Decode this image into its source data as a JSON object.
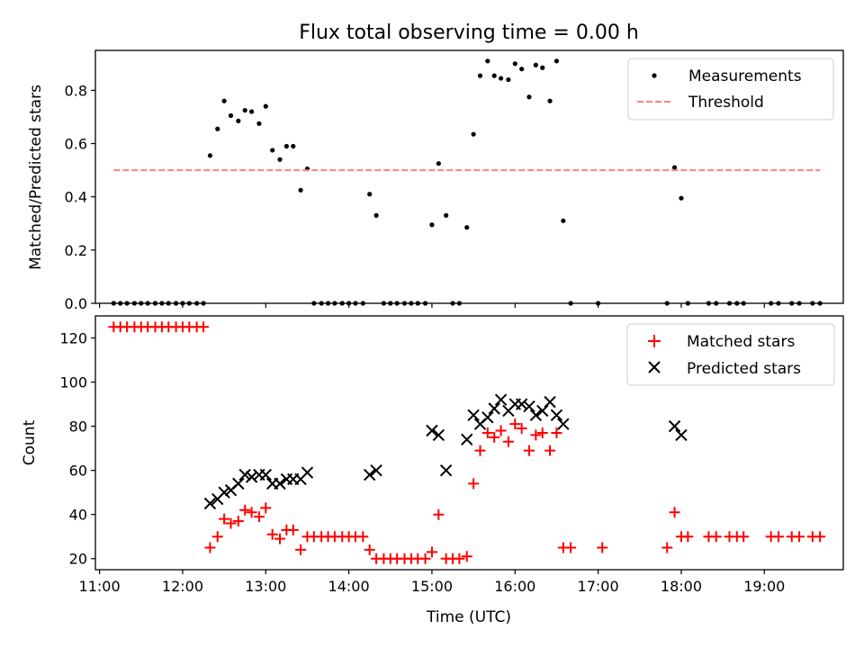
{
  "chart_data": [
    {
      "type": "scatter",
      "title": "Flux total observing time = 0.00 h",
      "xlabel": "",
      "ylabel": "Matched/Predicted stars",
      "xlim": [
        10.95,
        19.95
      ],
      "ylim": [
        0,
        0.95
      ],
      "yticks": [
        0,
        0.2,
        0.4,
        0.6,
        0.8
      ],
      "ytick_labels": [
        "0.0",
        "0.2",
        "0.4",
        "0.6",
        "0.8"
      ],
      "xticks": [
        11,
        12,
        13,
        14,
        15,
        16,
        17,
        18,
        19
      ],
      "xtick_labels": [
        "",
        "",
        "",
        "",
        "",
        "",
        "",
        "",
        ""
      ],
      "legend": {
        "position": "top-right",
        "entries": [
          "Measurements",
          "Threshold"
        ]
      },
      "series": [
        {
          "name": "Measurements",
          "marker": "dot",
          "color": "#000000",
          "points": [
            [
              11.17,
              0
            ],
            [
              11.25,
              0
            ],
            [
              11.33,
              0
            ],
            [
              11.42,
              0
            ],
            [
              11.5,
              0
            ],
            [
              11.58,
              0
            ],
            [
              11.67,
              0
            ],
            [
              11.75,
              0
            ],
            [
              11.83,
              0
            ],
            [
              11.92,
              0
            ],
            [
              12.0,
              0
            ],
            [
              12.08,
              0
            ],
            [
              12.17,
              0
            ],
            [
              12.25,
              0
            ],
            [
              12.33,
              0.555
            ],
            [
              12.42,
              0.655
            ],
            [
              12.5,
              0.76
            ],
            [
              12.58,
              0.705
            ],
            [
              12.67,
              0.685
            ],
            [
              12.75,
              0.725
            ],
            [
              12.83,
              0.72
            ],
            [
              12.92,
              0.675
            ],
            [
              13.0,
              0.74
            ],
            [
              13.08,
              0.575
            ],
            [
              13.17,
              0.54
            ],
            [
              13.25,
              0.59
            ],
            [
              13.33,
              0.59
            ],
            [
              13.42,
              0.425
            ],
            [
              13.5,
              0.505
            ],
            [
              13.58,
              0
            ],
            [
              13.67,
              0
            ],
            [
              13.75,
              0
            ],
            [
              13.83,
              0
            ],
            [
              13.92,
              0
            ],
            [
              14.0,
              0
            ],
            [
              14.08,
              0
            ],
            [
              14.17,
              0
            ],
            [
              14.25,
              0.41
            ],
            [
              14.33,
              0.33
            ],
            [
              14.42,
              0
            ],
            [
              14.5,
              0
            ],
            [
              14.58,
              0
            ],
            [
              14.67,
              0
            ],
            [
              14.75,
              0
            ],
            [
              14.83,
              0
            ],
            [
              14.92,
              0
            ],
            [
              15.0,
              0.295
            ],
            [
              15.08,
              0.525
            ],
            [
              15.17,
              0.33
            ],
            [
              15.25,
              0
            ],
            [
              15.33,
              0
            ],
            [
              15.42,
              0.285
            ],
            [
              15.5,
              0.635
            ],
            [
              15.58,
              0.855
            ],
            [
              15.67,
              0.91
            ],
            [
              15.75,
              0.855
            ],
            [
              15.83,
              0.845
            ],
            [
              15.92,
              0.84
            ],
            [
              16.0,
              0.9
            ],
            [
              16.08,
              0.88
            ],
            [
              16.17,
              0.775
            ],
            [
              16.25,
              0.895
            ],
            [
              16.33,
              0.885
            ],
            [
              16.42,
              0.76
            ],
            [
              16.5,
              0.91
            ],
            [
              16.58,
              0.31
            ],
            [
              16.67,
              0
            ],
            [
              17.0,
              0
            ],
            [
              17.83,
              0
            ],
            [
              17.92,
              0.51
            ],
            [
              18.0,
              0.395
            ],
            [
              18.08,
              0
            ],
            [
              18.33,
              0
            ],
            [
              18.42,
              0
            ],
            [
              18.58,
              0
            ],
            [
              18.67,
              0
            ],
            [
              18.75,
              0
            ],
            [
              19.08,
              0
            ],
            [
              19.17,
              0
            ],
            [
              19.33,
              0
            ],
            [
              19.42,
              0
            ],
            [
              19.58,
              0
            ],
            [
              19.67,
              0
            ]
          ]
        },
        {
          "name": "Threshold",
          "marker": "dashed-line",
          "color": "#ff7f7f",
          "points": [
            [
              11.17,
              0.5
            ],
            [
              19.67,
              0.5
            ]
          ]
        }
      ]
    },
    {
      "type": "scatter",
      "title": "",
      "xlabel": "Time (UTC)",
      "ylabel": "Count",
      "xlim": [
        10.95,
        19.95
      ],
      "ylim": [
        15,
        130
      ],
      "yticks": [
        20,
        40,
        60,
        80,
        100,
        120
      ],
      "ytick_labels": [
        "20",
        "40",
        "60",
        "80",
        "100",
        "120"
      ],
      "xticks": [
        11,
        12,
        13,
        14,
        15,
        16,
        17,
        18,
        19
      ],
      "xtick_labels": [
        "11:00",
        "12:00",
        "13:00",
        "14:00",
        "15:00",
        "16:00",
        "17:00",
        "18:00",
        "19:00"
      ],
      "legend": {
        "position": "top-right",
        "entries": [
          "Matched stars",
          "Predicted stars"
        ]
      },
      "series": [
        {
          "name": "Matched stars",
          "marker": "plus",
          "color": "#ff0000",
          "points": [
            [
              11.17,
              125
            ],
            [
              11.25,
              125
            ],
            [
              11.33,
              125
            ],
            [
              11.42,
              125
            ],
            [
              11.5,
              125
            ],
            [
              11.58,
              125
            ],
            [
              11.67,
              125
            ],
            [
              11.75,
              125
            ],
            [
              11.83,
              125
            ],
            [
              11.92,
              125
            ],
            [
              12.0,
              125
            ],
            [
              12.08,
              125
            ],
            [
              12.17,
              125
            ],
            [
              12.25,
              125
            ],
            [
              12.33,
              25
            ],
            [
              12.42,
              30
            ],
            [
              12.5,
              38
            ],
            [
              12.58,
              36
            ],
            [
              12.67,
              37
            ],
            [
              12.75,
              42
            ],
            [
              12.83,
              41
            ],
            [
              12.92,
              39
            ],
            [
              13.0,
              43
            ],
            [
              13.08,
              31
            ],
            [
              13.17,
              29
            ],
            [
              13.25,
              33
            ],
            [
              13.33,
              33
            ],
            [
              13.42,
              24
            ],
            [
              13.5,
              30
            ],
            [
              13.58,
              30
            ],
            [
              13.67,
              30
            ],
            [
              13.75,
              30
            ],
            [
              13.83,
              30
            ],
            [
              13.92,
              30
            ],
            [
              14.0,
              30
            ],
            [
              14.08,
              30
            ],
            [
              14.17,
              30
            ],
            [
              14.25,
              24
            ],
            [
              14.33,
              20
            ],
            [
              14.42,
              20
            ],
            [
              14.5,
              20
            ],
            [
              14.58,
              20
            ],
            [
              14.67,
              20
            ],
            [
              14.75,
              20
            ],
            [
              14.83,
              20
            ],
            [
              14.92,
              20
            ],
            [
              15.0,
              23
            ],
            [
              15.08,
              40
            ],
            [
              15.17,
              20
            ],
            [
              15.25,
              20
            ],
            [
              15.33,
              20
            ],
            [
              15.42,
              21
            ],
            [
              15.5,
              54
            ],
            [
              15.58,
              69
            ],
            [
              15.67,
              77
            ],
            [
              15.75,
              75
            ],
            [
              15.83,
              78
            ],
            [
              15.92,
              73
            ],
            [
              16.0,
              81
            ],
            [
              16.08,
              79
            ],
            [
              16.17,
              69
            ],
            [
              16.25,
              76
            ],
            [
              16.33,
              77
            ],
            [
              16.42,
              69
            ],
            [
              16.5,
              77
            ],
            [
              16.58,
              25
            ],
            [
              16.67,
              25
            ],
            [
              17.05,
              25
            ],
            [
              17.83,
              25
            ],
            [
              17.92,
              41
            ],
            [
              18.0,
              30
            ],
            [
              18.08,
              30
            ],
            [
              18.33,
              30
            ],
            [
              18.42,
              30
            ],
            [
              18.58,
              30
            ],
            [
              18.67,
              30
            ],
            [
              18.75,
              30
            ],
            [
              19.08,
              30
            ],
            [
              19.17,
              30
            ],
            [
              19.33,
              30
            ],
            [
              19.42,
              30
            ],
            [
              19.58,
              30
            ],
            [
              19.67,
              30
            ]
          ]
        },
        {
          "name": "Predicted stars",
          "marker": "x",
          "color": "#000000",
          "points": [
            [
              12.33,
              45
            ],
            [
              12.42,
              47
            ],
            [
              12.5,
              50
            ],
            [
              12.58,
              51
            ],
            [
              12.67,
              54
            ],
            [
              12.75,
              58
            ],
            [
              12.83,
              57
            ],
            [
              12.92,
              58
            ],
            [
              13.0,
              58
            ],
            [
              13.08,
              54
            ],
            [
              13.17,
              54
            ],
            [
              13.25,
              56
            ],
            [
              13.33,
              56
            ],
            [
              13.42,
              56
            ],
            [
              13.5,
              59
            ],
            [
              14.25,
              58
            ],
            [
              14.33,
              60
            ],
            [
              15.0,
              78
            ],
            [
              15.08,
              76
            ],
            [
              15.17,
              60
            ],
            [
              15.42,
              74
            ],
            [
              15.5,
              85
            ],
            [
              15.58,
              81
            ],
            [
              15.67,
              84
            ],
            [
              15.75,
              88
            ],
            [
              15.83,
              92
            ],
            [
              15.92,
              87
            ],
            [
              16.0,
              90
            ],
            [
              16.08,
              90
            ],
            [
              16.17,
              89
            ],
            [
              16.25,
              85
            ],
            [
              16.33,
              87
            ],
            [
              16.42,
              91
            ],
            [
              16.5,
              85
            ],
            [
              16.58,
              81
            ],
            [
              17.92,
              80
            ],
            [
              18.0,
              76
            ]
          ]
        }
      ]
    }
  ]
}
